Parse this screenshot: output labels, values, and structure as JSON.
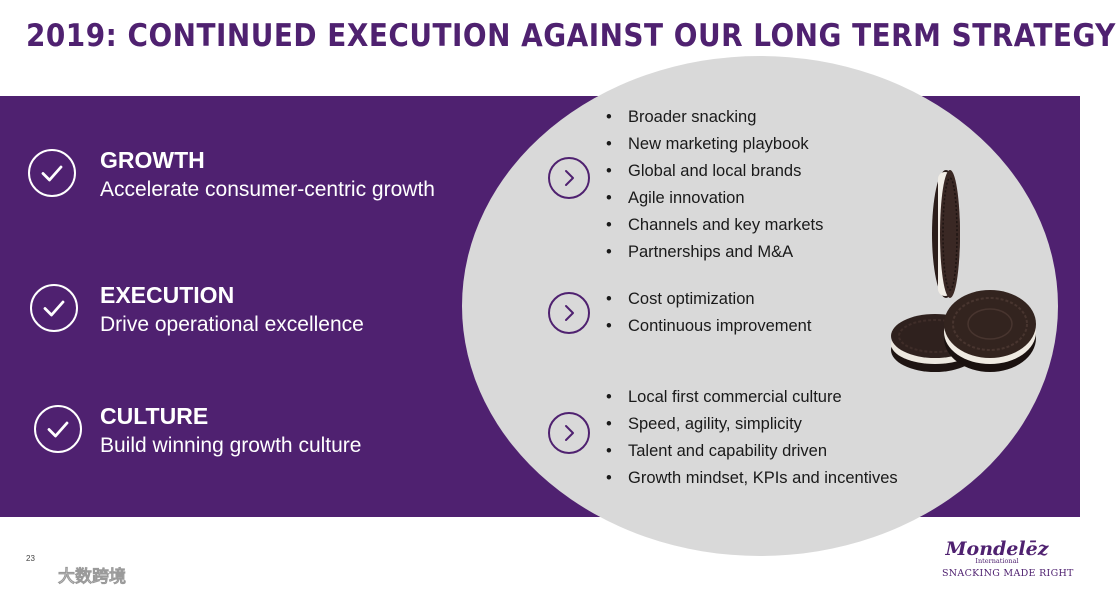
{
  "slide": {
    "title": "2019: CONTINUED EXECUTION AGAINST OUR LONG TERM STRATEGY",
    "page_number": "23"
  },
  "pillars": [
    {
      "name": "GROWTH",
      "description": "Accelerate consumer-centric growth",
      "bullets": [
        "Broader snacking",
        "New marketing playbook",
        "Global and local brands",
        "Agile innovation",
        "Channels and key markets",
        "Partnerships and M&A"
      ]
    },
    {
      "name": "EXECUTION",
      "description": "Drive operational excellence",
      "bullets": [
        "Cost optimization",
        "Continuous improvement"
      ]
    },
    {
      "name": "CULTURE",
      "description": "Build winning growth culture",
      "bullets": [
        "Local first commercial culture",
        "Speed, agility, simplicity",
        "Talent and capability driven",
        "Growth mindset, KPIs and incentives"
      ]
    }
  ],
  "icons": {
    "pillar": "checkmark-circle-icon",
    "arrow": "chevron-right-circle-icon"
  },
  "logo": {
    "name": "Mondelēz",
    "subtitle": "International",
    "tagline": "SNACKING MADE RIGHT"
  },
  "watermark": {
    "text": "大数跨境"
  },
  "colors": {
    "brand_purple": "#4f2170",
    "light_grey": "#d9d9d9",
    "white": "#ffffff"
  }
}
